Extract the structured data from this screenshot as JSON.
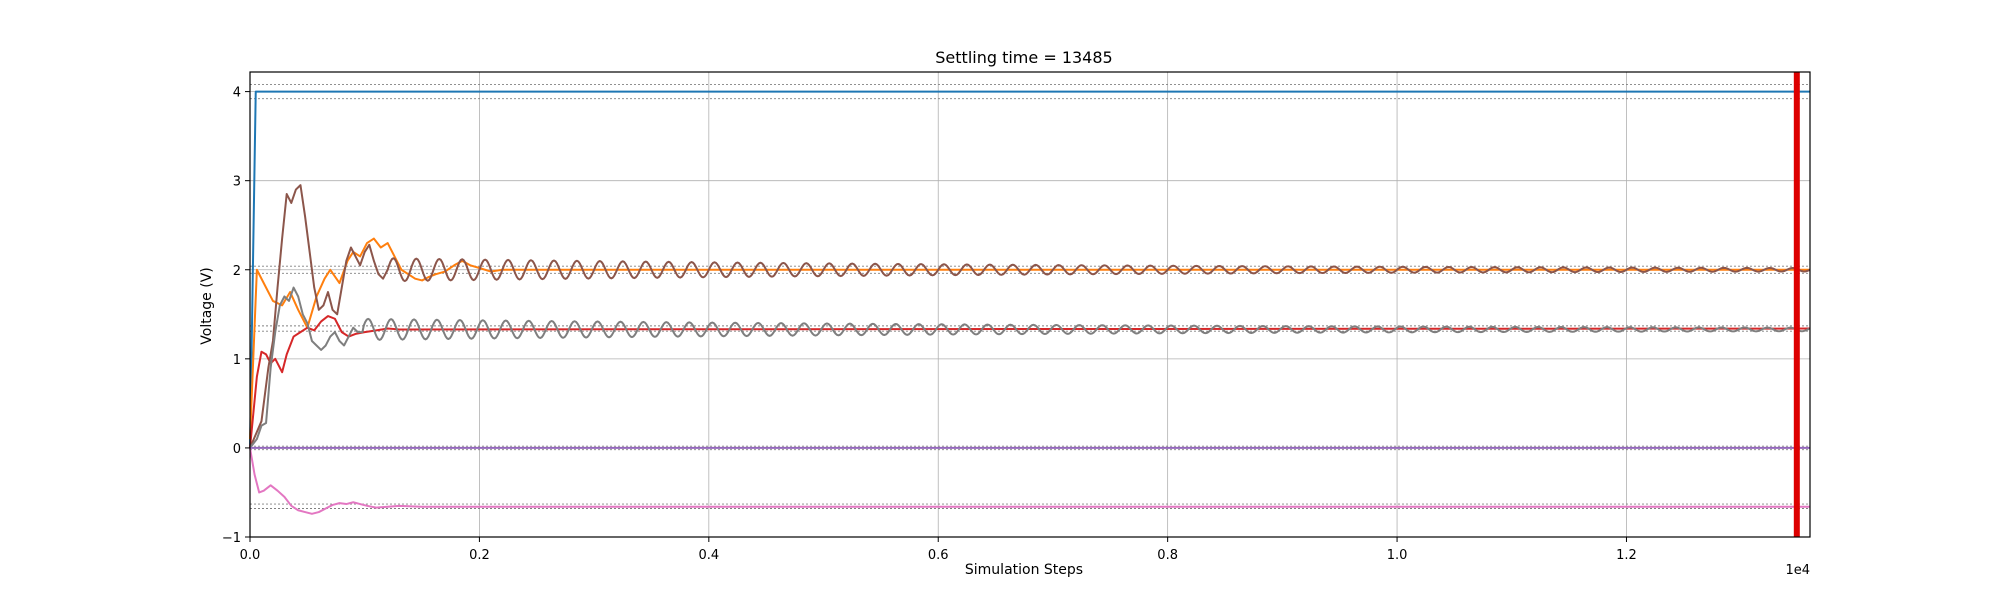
{
  "chart_data": {
    "type": "line",
    "title": "Settling time = 13485",
    "xlabel": "Simulation Steps",
    "ylabel": "Voltage (V)",
    "x_offset_label": "1e4",
    "xlim": [
      0,
      13600
    ],
    "ylim": [
      -1,
      4.22
    ],
    "xticks": [
      0,
      2000,
      4000,
      6000,
      8000,
      10000,
      12000
    ],
    "xtick_labels": [
      "0.0",
      "0.2",
      "0.4",
      "0.6",
      "0.8",
      "1.0",
      "1.2"
    ],
    "yticks": [
      -1,
      0,
      1,
      2,
      3,
      4
    ],
    "ytick_labels": [
      "−1",
      "0",
      "1",
      "2",
      "3",
      "4"
    ],
    "grid": true,
    "settling_marker": {
      "x": 13485,
      "color": "#dd0000"
    },
    "tolerance_bands": [
      {
        "lower": 3.92,
        "upper": 4.08
      },
      {
        "lower": 1.96,
        "upper": 2.04
      },
      {
        "lower": 1.31,
        "upper": 1.37
      },
      {
        "lower": -0.02,
        "upper": 0.02
      },
      {
        "lower": -0.68,
        "upper": -0.63
      }
    ],
    "series": [
      {
        "color": "#1f77b4",
        "points": [
          [
            0,
            0
          ],
          [
            50,
            4.0
          ],
          [
            13600,
            4.0
          ]
        ]
      },
      {
        "color": "#ff7f0e",
        "points": [
          [
            0,
            0.1
          ],
          [
            60,
            2.0
          ],
          [
            120,
            1.85
          ],
          [
            200,
            1.65
          ],
          [
            280,
            1.6
          ],
          [
            350,
            1.75
          ],
          [
            420,
            1.55
          ],
          [
            500,
            1.35
          ],
          [
            580,
            1.7
          ],
          [
            650,
            1.9
          ],
          [
            700,
            2.0
          ],
          [
            780,
            1.85
          ],
          [
            850,
            2.1
          ],
          [
            900,
            2.2
          ],
          [
            960,
            2.15
          ],
          [
            1020,
            2.3
          ],
          [
            1080,
            2.35
          ],
          [
            1140,
            2.25
          ],
          [
            1200,
            2.3
          ],
          [
            1260,
            2.15
          ],
          [
            1320,
            2.0
          ],
          [
            1380,
            1.95
          ],
          [
            1440,
            1.9
          ],
          [
            1500,
            1.88
          ],
          [
            1560,
            1.92
          ],
          [
            1620,
            1.95
          ],
          [
            1700,
            1.98
          ],
          [
            1780,
            2.05
          ],
          [
            1850,
            2.1
          ],
          [
            1920,
            2.05
          ],
          [
            2000,
            2.02
          ],
          [
            2100,
            1.98
          ],
          [
            2200,
            2.0
          ],
          [
            13600,
            2.0
          ]
        ]
      },
      {
        "color": "#d62728",
        "points": [
          [
            0,
            0
          ],
          [
            60,
            0.8
          ],
          [
            100,
            1.08
          ],
          [
            140,
            1.05
          ],
          [
            180,
            0.95
          ],
          [
            220,
            1.0
          ],
          [
            280,
            0.85
          ],
          [
            320,
            1.05
          ],
          [
            380,
            1.25
          ],
          [
            440,
            1.3
          ],
          [
            500,
            1.35
          ],
          [
            560,
            1.32
          ],
          [
            620,
            1.42
          ],
          [
            680,
            1.48
          ],
          [
            740,
            1.45
          ],
          [
            800,
            1.3
          ],
          [
            860,
            1.25
          ],
          [
            920,
            1.28
          ],
          [
            1000,
            1.3
          ],
          [
            1100,
            1.32
          ],
          [
            1200,
            1.34
          ],
          [
            1300,
            1.33
          ],
          [
            13600,
            1.34
          ]
        ]
      },
      {
        "color": "#e377c2",
        "points": [
          [
            0,
            0
          ],
          [
            40,
            -0.3
          ],
          [
            80,
            -0.5
          ],
          [
            120,
            -0.48
          ],
          [
            180,
            -0.42
          ],
          [
            240,
            -0.48
          ],
          [
            300,
            -0.55
          ],
          [
            360,
            -0.65
          ],
          [
            420,
            -0.7
          ],
          [
            480,
            -0.72
          ],
          [
            540,
            -0.74
          ],
          [
            600,
            -0.72
          ],
          [
            660,
            -0.68
          ],
          [
            720,
            -0.64
          ],
          [
            780,
            -0.62
          ],
          [
            840,
            -0.63
          ],
          [
            900,
            -0.61
          ],
          [
            960,
            -0.63
          ],
          [
            1020,
            -0.65
          ],
          [
            1100,
            -0.67
          ],
          [
            1200,
            -0.66
          ],
          [
            1300,
            -0.65
          ],
          [
            1500,
            -0.66
          ],
          [
            13600,
            -0.66
          ]
        ]
      },
      {
        "color": "#8c564b",
        "points": [
          [
            0,
            0
          ],
          [
            100,
            0.3
          ],
          [
            160,
            0.9
          ],
          [
            200,
            1.2
          ],
          [
            240,
            1.8
          ],
          [
            280,
            2.35
          ],
          [
            320,
            2.85
          ],
          [
            360,
            2.75
          ],
          [
            400,
            2.9
          ],
          [
            440,
            2.95
          ],
          [
            480,
            2.6
          ],
          [
            520,
            2.2
          ],
          [
            560,
            1.8
          ],
          [
            600,
            1.55
          ],
          [
            640,
            1.6
          ],
          [
            680,
            1.75
          ],
          [
            720,
            1.55
          ],
          [
            760,
            1.5
          ],
          [
            800,
            1.8
          ],
          [
            840,
            2.1
          ],
          [
            880,
            2.25
          ],
          [
            920,
            2.15
          ],
          [
            960,
            2.05
          ],
          [
            1000,
            2.2
          ],
          [
            1040,
            2.28
          ],
          [
            1080,
            2.1
          ],
          [
            1120,
            1.95
          ],
          [
            1160,
            1.9
          ],
          [
            1200,
            2.0
          ]
        ]
      },
      {
        "color": "#7f7f7f",
        "points": [
          [
            0,
            0
          ],
          [
            60,
            0.1
          ],
          [
            100,
            0.25
          ],
          [
            140,
            0.28
          ],
          [
            180,
            0.9
          ],
          [
            220,
            1.3
          ],
          [
            260,
            1.6
          ],
          [
            300,
            1.7
          ],
          [
            340,
            1.65
          ],
          [
            380,
            1.8
          ],
          [
            420,
            1.7
          ],
          [
            460,
            1.5
          ],
          [
            500,
            1.4
          ],
          [
            540,
            1.2
          ],
          [
            580,
            1.15
          ],
          [
            620,
            1.1
          ],
          [
            660,
            1.15
          ],
          [
            700,
            1.25
          ],
          [
            740,
            1.3
          ],
          [
            780,
            1.2
          ],
          [
            820,
            1.15
          ],
          [
            860,
            1.25
          ],
          [
            900,
            1.35
          ],
          [
            940,
            1.3
          ],
          [
            980,
            1.3
          ]
        ]
      },
      {
        "color": "#9467bd",
        "points": [
          [
            0,
            0
          ],
          [
            13600,
            0
          ]
        ]
      }
    ],
    "oscillations": [
      {
        "series_index": 4,
        "start": 1200,
        "end": 13600,
        "center": 2.0,
        "amp_start": 0.13,
        "decay": 6500,
        "period": 200
      },
      {
        "series_index": 5,
        "start": 980,
        "end": 13600,
        "center": 1.33,
        "amp_start": 0.12,
        "decay": 7000,
        "period": 200
      }
    ]
  }
}
